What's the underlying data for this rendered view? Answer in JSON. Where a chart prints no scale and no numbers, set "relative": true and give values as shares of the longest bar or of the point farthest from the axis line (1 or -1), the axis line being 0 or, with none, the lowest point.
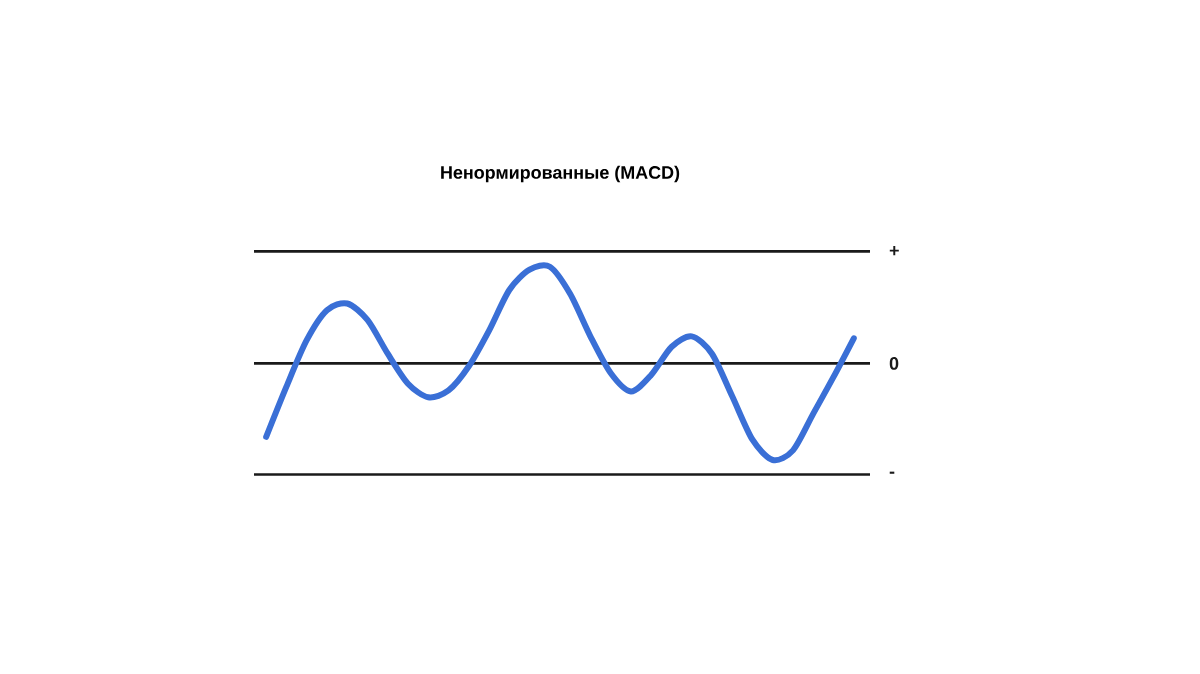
{
  "chart_data": {
    "type": "line",
    "title": "Ненормированные (MACD)",
    "relative": true,
    "categories": [
      null,
      null,
      null,
      null,
      null,
      null,
      null,
      null,
      null,
      null,
      null,
      null,
      null,
      null,
      null,
      null,
      null,
      null,
      null,
      null,
      null,
      null,
      null,
      null,
      null,
      null,
      null,
      null,
      null,
      null
    ],
    "series": [
      {
        "color": "#3a6fd6",
        "values": [
          -0.76,
          -0.24,
          0.24,
          0.55,
          0.62,
          0.45,
          0.1,
          -0.21,
          -0.35,
          -0.28,
          -0.03,
          0.34,
          0.76,
          0.97,
          1.0,
          0.72,
          0.28,
          -0.1,
          -0.29,
          -0.12,
          0.17,
          0.28,
          0.1,
          -0.34,
          -0.79,
          -1.0,
          -0.9,
          -0.52,
          -0.14,
          0.26
        ]
      }
    ],
    "ref_lines": [
      {
        "axis": "y",
        "value": 1.16,
        "label": "+",
        "color": "#1a1a1a"
      },
      {
        "axis": "y",
        "value": 0,
        "label": "0",
        "color": "#1a1a1a"
      },
      {
        "axis": "y",
        "value": -1.15,
        "label": "-",
        "color": "#1a1a1a"
      }
    ]
  }
}
